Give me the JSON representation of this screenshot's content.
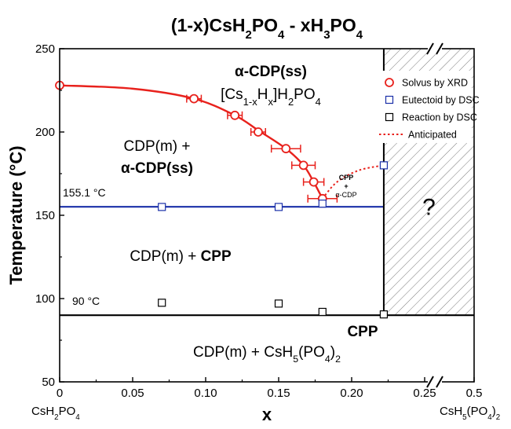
{
  "chart_data": {
    "type": "scatter",
    "title": "(1-x)CsH2PO4 - xH3PO4",
    "xlabel": "x",
    "ylabel": "Temperature (°C)",
    "xlim": [
      0,
      0.5
    ],
    "ylim": [
      50,
      250
    ],
    "x_ticks": [
      "0",
      "0.05",
      "0.10",
      "0.15",
      "0.20",
      "0.25",
      "0.5"
    ],
    "y_ticks": [
      "50",
      "100",
      "150",
      "200",
      "250"
    ],
    "axis_break": "//",
    "end_labels": {
      "left": "CsH2PO4",
      "right": "CsH5(PO4)2"
    },
    "legend": {
      "placement": "top-right",
      "entries": [
        "Solvus by XRD",
        "Eutectoid by DSC",
        "Reaction by DSC",
        "Anticipated"
      ]
    },
    "series": [
      {
        "name": "Solvus by XRD",
        "color": "#e8211c",
        "marker": "circle",
        "points": [
          {
            "x": 0,
            "y": 228
          },
          {
            "x": 0.092,
            "y": 220,
            "xerr": 0.005
          },
          {
            "x": 0.12,
            "y": 210,
            "xerr": 0.005
          },
          {
            "x": 0.136,
            "y": 200,
            "xerr": 0.005
          },
          {
            "x": 0.155,
            "y": 190,
            "xerr": 0.01
          },
          {
            "x": 0.167,
            "y": 180,
            "xerr": 0.008
          },
          {
            "x": 0.174,
            "y": 170,
            "xerr": 0.007
          },
          {
            "x": 0.18,
            "y": 160,
            "xerr": 0.01
          }
        ]
      },
      {
        "name": "Eutectoid by DSC",
        "color": "#1a2fa8",
        "marker": "square",
        "points": [
          {
            "x": 0.07,
            "y": 155
          },
          {
            "x": 0.15,
            "y": 155
          },
          {
            "x": 0.18,
            "y": 157
          },
          {
            "x": 0.222,
            "y": 180
          }
        ]
      },
      {
        "name": "Reaction by DSC",
        "color": "#000000",
        "marker": "square",
        "points": [
          {
            "x": 0.07,
            "y": 97.5
          },
          {
            "x": 0.15,
            "y": 97
          },
          {
            "x": 0.18,
            "y": 92
          },
          {
            "x": 0.222,
            "y": 90.5
          }
        ]
      }
    ],
    "solvus_curve": [
      [
        0,
        228
      ],
      [
        0.05,
        226
      ],
      [
        0.092,
        220
      ],
      [
        0.12,
        210
      ],
      [
        0.136,
        201
      ],
      [
        0.155,
        190
      ],
      [
        0.167,
        180
      ],
      [
        0.174,
        170
      ],
      [
        0.18,
        160
      ]
    ],
    "anticipated_curve": [
      [
        0.18,
        160
      ],
      [
        0.19,
        170
      ],
      [
        0.205,
        177
      ],
      [
        0.222,
        180
      ]
    ],
    "eutectoid_line": {
      "y": 155.1,
      "x_start": 0,
      "x_end": 0.222,
      "color": "#1a2fa8"
    },
    "reaction_line": {
      "y": 90,
      "x_start": 0,
      "x_end": 0.5
    },
    "phase_boundary_x": 0.222,
    "hatched_region": {
      "x_start": 0.222,
      "x_end": 0.5,
      "y_start": 90,
      "y_end": 250,
      "label": "?"
    },
    "annotations": {
      "eutectoid_temp": "155.1 °C",
      "reaction_temp": "90 °C",
      "alpha_region": "α-CDP(ss)",
      "alpha_formula": "[Cs1-xHx]H2PO4",
      "region_mid_1": "CDP(m) +",
      "region_mid_2": "α-CDP(ss)",
      "region_cdp_cpp_1": "CDP(m) + ",
      "region_cdp_cpp_2": "CPP",
      "region_bottom": "CDP(m) + CsH5(PO4)2",
      "cpp_label": "CPP",
      "small_cpp": "CPP",
      "small_plus": "+",
      "small_alpha": "α-CDP"
    }
  }
}
